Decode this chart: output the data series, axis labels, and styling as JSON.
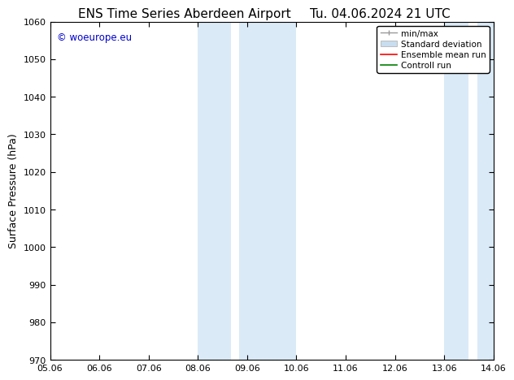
{
  "title_left": "ENS Time Series Aberdeen Airport",
  "title_right": "Tu. 04.06.2024 21 UTC",
  "ylabel": "Surface Pressure (hPa)",
  "ylim": [
    970,
    1060
  ],
  "yticks": [
    970,
    980,
    990,
    1000,
    1010,
    1020,
    1030,
    1040,
    1050,
    1060
  ],
  "xtick_labels": [
    "05.06",
    "06.06",
    "07.06",
    "08.06",
    "09.06",
    "10.06",
    "11.06",
    "12.06",
    "13.06",
    "14.06"
  ],
  "xtick_positions": [
    0,
    1,
    2,
    3,
    4,
    5,
    6,
    7,
    8,
    9
  ],
  "xlim": [
    0,
    9
  ],
  "shaded_regions": [
    {
      "x_start": 3.0,
      "x_end": 3.67,
      "color": "#daeaf7"
    },
    {
      "x_start": 3.67,
      "x_end": 5.0,
      "color": "#daeaf7"
    },
    {
      "x_start": 8.0,
      "x_end": 8.5,
      "color": "#daeaf7"
    },
    {
      "x_start": 8.5,
      "x_end": 9.0,
      "color": "#daeaf7"
    }
  ],
  "watermark_text": "© woeurope.eu",
  "watermark_color": "#0000cc",
  "background_color": "#ffffff",
  "legend_items": [
    {
      "label": "min/max",
      "color": "#aaaaaa",
      "lw": 1.0
    },
    {
      "label": "Standard deviation",
      "color": "#c8ddef",
      "lw": 8
    },
    {
      "label": "Ensemble mean run",
      "color": "red",
      "lw": 1.2
    },
    {
      "label": "Controll run",
      "color": "green",
      "lw": 1.2
    }
  ],
  "title_fontsize": 11,
  "axis_label_fontsize": 9,
  "tick_fontsize": 8,
  "legend_fontsize": 7.5
}
